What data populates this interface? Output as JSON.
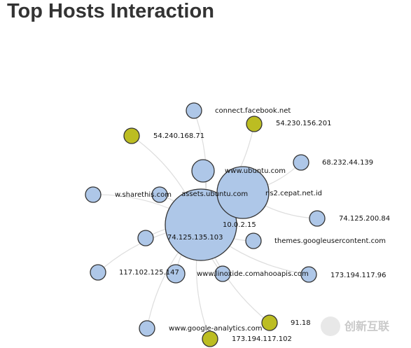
{
  "header": {
    "title": "Top Hosts Interaction"
  },
  "nodes": [
    {
      "label": "connect.facebook.net"
    },
    {
      "label": "54.230.156.201"
    },
    {
      "label": "54.240.168.71"
    },
    {
      "label": "68.232.44.139"
    },
    {
      "label": "www.ubuntu.com"
    },
    {
      "label": "w.sharethis.com"
    },
    {
      "label": "assets.ubuntu.com"
    },
    {
      "label": "ns2.cepat.net.id"
    },
    {
      "label": "74.125.200.84"
    },
    {
      "label": "10.0.2.15"
    },
    {
      "label": "themes.googleusercontent.com"
    },
    {
      "label": "74.125.135.103"
    },
    {
      "label": "117.102.125.147"
    },
    {
      "label": "www.linoxide.com"
    },
    {
      "label": "ahooapis.com"
    },
    {
      "label": "173.194.117.96"
    },
    {
      "label": "www.google-analytics.com"
    },
    {
      "label": "91.18"
    },
    {
      "label": "173.194.117.102"
    }
  ],
  "watermark": "创新互联"
}
